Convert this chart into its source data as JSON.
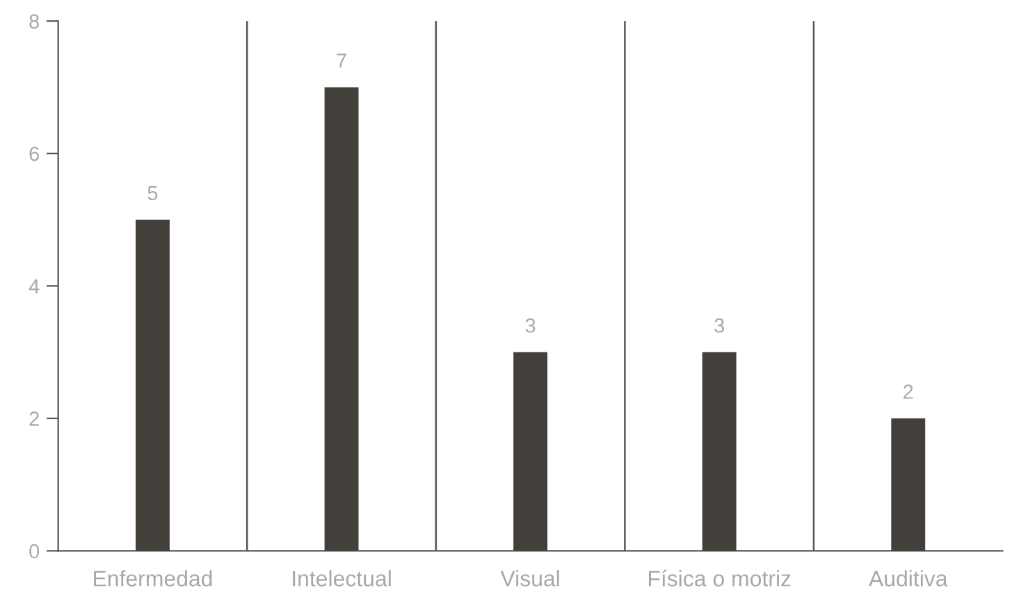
{
  "chart_data": {
    "type": "bar",
    "categories": [
      "Enfermedad",
      "Intelectual",
      "Visual",
      "Física o motriz",
      "Auditiva"
    ],
    "values": [
      5,
      7,
      3,
      3,
      2
    ],
    "color": "#433f3b",
    "ylim": [
      0,
      8
    ],
    "yticks": [
      0,
      2,
      4,
      6,
      8
    ],
    "grid": "x",
    "data_labels": true
  }
}
